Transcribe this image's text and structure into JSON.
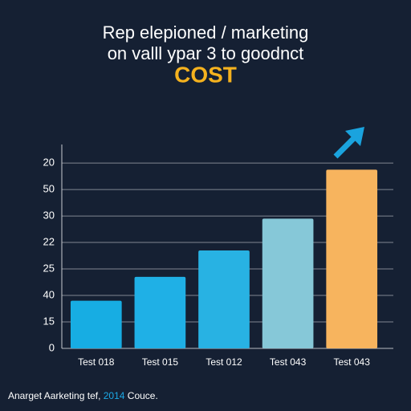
{
  "chart_data": {
    "type": "bar",
    "title_lines": [
      "Rep elepioned / marketing",
      "on valll ypar 3 to goodnct"
    ],
    "highlight": "COST",
    "categories": [
      "Test 018",
      "Test 015",
      "Test 012",
      "Test 043",
      "Test 043"
    ],
    "values": [
      1.8,
      2.7,
      3.7,
      4.9,
      6.75
    ],
    "colors": [
      "#17ade3",
      "#1fb0e6",
      "#28b2e3",
      "#86c8d8",
      "#f7b45e"
    ],
    "ylim": [
      0,
      7.7
    ],
    "yticks": [
      {
        "value": 0,
        "label": "0"
      },
      {
        "value": 1,
        "label": "15"
      },
      {
        "value": 2,
        "label": "40"
      },
      {
        "value": 3,
        "label": "25"
      },
      {
        "value": 4,
        "label": "22"
      },
      {
        "value": 5,
        "label": "30"
      },
      {
        "value": 6,
        "label": "50"
      },
      {
        "value": 7,
        "label": "20"
      }
    ],
    "grid": true,
    "footer": {
      "prefix": "Anarget Aarketing tef,",
      "year": "2014",
      "suffix": "Couce."
    }
  }
}
